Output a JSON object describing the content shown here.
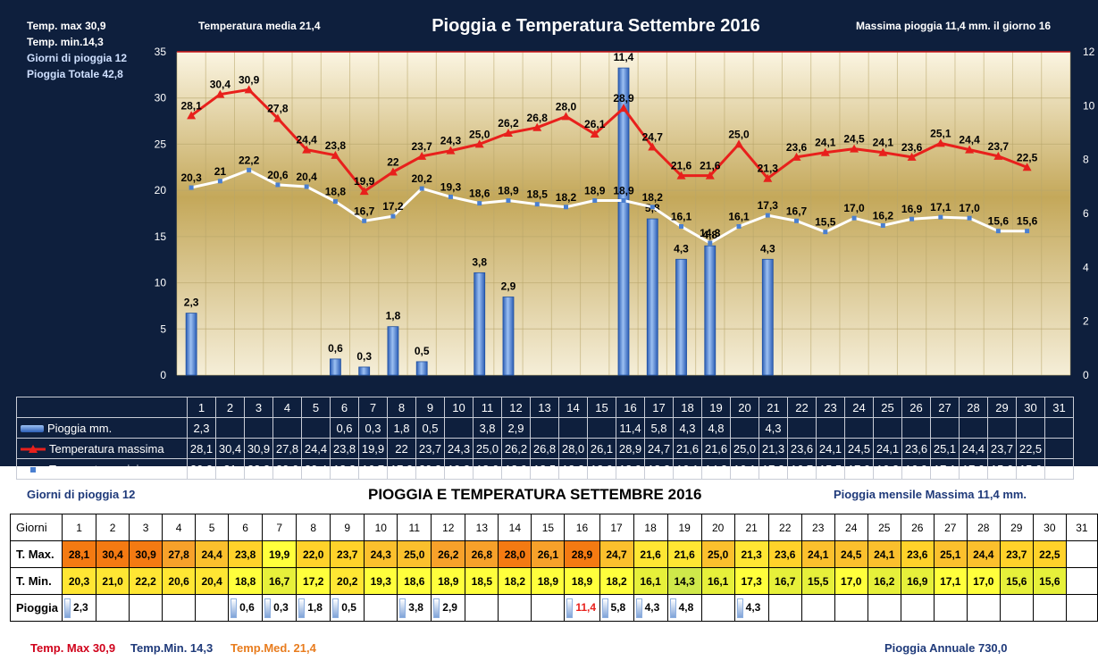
{
  "stats": {
    "tmax": "Temp. max  30,9",
    "tmin": "Temp.  min.14,3",
    "rain_days": "Giorni  di pioggia  12",
    "rain_total": "Pioggia Totale  42,8",
    "mean": "Temperatura media  21,4",
    "rain_max": "Massima pioggia 11,4 mm.  il giorno 16"
  },
  "chart_data": {
    "type": "bar",
    "title": "Pioggia e Temperatura Settembre 2016",
    "categories": [
      "1",
      "2",
      "3",
      "4",
      "5",
      "6",
      "7",
      "8",
      "9",
      "10",
      "11",
      "12",
      "13",
      "14",
      "15",
      "16",
      "17",
      "18",
      "19",
      "20",
      "21",
      "22",
      "23",
      "24",
      "25",
      "26",
      "27",
      "28",
      "29",
      "30",
      "31"
    ],
    "y_left": {
      "min": 0,
      "max": 35,
      "ticks": [
        "0",
        "5",
        "10",
        "15",
        "20",
        "25",
        "30",
        "35"
      ]
    },
    "y_right": {
      "min": 0,
      "max": 12,
      "ticks": [
        "0",
        "2",
        "4",
        "6",
        "8",
        "10",
        "12"
      ]
    },
    "grid": true,
    "series": [
      {
        "name": "Pioggia mm.",
        "kind": "bar",
        "axis": "right",
        "color": "#4a7fd0",
        "values": [
          2.3,
          null,
          null,
          null,
          null,
          0.6,
          0.3,
          1.8,
          0.5,
          null,
          3.8,
          2.9,
          null,
          null,
          null,
          11.4,
          5.8,
          4.3,
          4.8,
          null,
          4.3,
          null,
          null,
          null,
          null,
          null,
          null,
          null,
          null,
          null,
          null
        ],
        "labels": [
          "2,3",
          "",
          "",
          "",
          "",
          "0,6",
          "0,3",
          "1,8",
          "0,5",
          "",
          "3,8",
          "2,9",
          "",
          "",
          "",
          "11,4",
          "5,8",
          "4,3",
          "4,8",
          "",
          "4,3",
          "",
          "",
          "",
          "",
          "",
          "",
          "",
          "",
          "",
          ""
        ]
      },
      {
        "name": "Temperatura massima",
        "kind": "line",
        "axis": "left",
        "color": "#e8201c",
        "values": [
          28.1,
          30.4,
          30.9,
          27.8,
          24.4,
          23.8,
          19.9,
          22.0,
          23.7,
          24.3,
          25.0,
          26.2,
          26.8,
          28.0,
          26.1,
          28.9,
          24.7,
          21.6,
          21.6,
          25.0,
          21.3,
          23.6,
          24.1,
          24.5,
          24.1,
          23.6,
          25.1,
          24.4,
          23.7,
          22.5,
          null
        ],
        "labels": [
          "28,1",
          "30,4",
          "30,9",
          "27,8",
          "24,4",
          "23,8",
          "19,9",
          "22",
          "23,7",
          "24,3",
          "25,0",
          "26,2",
          "26,8",
          "28,0",
          "26,1",
          "28,9",
          "24,7",
          "21,6",
          "21,6",
          "25,0",
          "21,3",
          "23,6",
          "24,1",
          "24,5",
          "24,1",
          "23,6",
          "25,1",
          "24,4",
          "23,7",
          "22,5",
          ""
        ]
      },
      {
        "name": "Temperatura minima",
        "kind": "line",
        "axis": "left",
        "color": "#ffffff",
        "values": [
          20.3,
          21.0,
          22.2,
          20.6,
          20.4,
          18.8,
          16.7,
          17.2,
          20.2,
          19.3,
          18.6,
          18.9,
          18.5,
          18.2,
          18.9,
          18.9,
          18.2,
          16.1,
          14.3,
          16.1,
          17.3,
          16.7,
          15.5,
          17.0,
          16.2,
          16.9,
          17.1,
          17.0,
          15.6,
          15.6,
          null
        ],
        "labels": [
          "20,3",
          "21",
          "22,2",
          "20,6",
          "20,4",
          "18,8",
          "16,7",
          "17,2",
          "20,2",
          "19,3",
          "18,6",
          "18,9",
          "18,5",
          "18,2",
          "18,9",
          "18,9",
          "18,2",
          "16,1",
          "14,3",
          "16,1",
          "17,3",
          "16,7",
          "15,5",
          "17,0",
          "16,2",
          "16,9",
          "17,1",
          "17,0",
          "15,6",
          "15,6",
          ""
        ]
      }
    ]
  },
  "lower": {
    "rain_days": "Giorni di pioggia  12",
    "title": "PIOGGIA E TEMPERATURA SETTEMBRE 2016",
    "rain_max": "Pioggia mensile Massima  11,4   mm.",
    "row_labels": [
      "Giorni",
      "T. Max.",
      "T. Min.",
      "Pioggia"
    ],
    "days": [
      "1",
      "2",
      "3",
      "4",
      "5",
      "6",
      "7",
      "8",
      "9",
      "10",
      "11",
      "12",
      "13",
      "14",
      "15",
      "16",
      "17",
      "18",
      "19",
      "20",
      "21",
      "22",
      "23",
      "24",
      "25",
      "26",
      "27",
      "28",
      "29",
      "30",
      "31"
    ],
    "tmax": [
      "28,1",
      "30,4",
      "30,9",
      "27,8",
      "24,4",
      "23,8",
      "19,9",
      "22,0",
      "23,7",
      "24,3",
      "25,0",
      "26,2",
      "26,8",
      "28,0",
      "26,1",
      "28,9",
      "24,7",
      "21,6",
      "21,6",
      "25,0",
      "21,3",
      "23,6",
      "24,1",
      "24,5",
      "24,1",
      "23,6",
      "25,1",
      "24,4",
      "23,7",
      "22,5",
      ""
    ],
    "tmin": [
      "20,3",
      "21,0",
      "22,2",
      "20,6",
      "20,4",
      "18,8",
      "16,7",
      "17,2",
      "20,2",
      "19,3",
      "18,6",
      "18,9",
      "18,5",
      "18,2",
      "18,9",
      "18,9",
      "18,2",
      "16,1",
      "14,3",
      "16,1",
      "17,3",
      "16,7",
      "15,5",
      "17,0",
      "16,2",
      "16,9",
      "17,1",
      "17,0",
      "15,6",
      "15,6",
      ""
    ],
    "rain": [
      "2,3",
      "",
      "",
      "",
      "",
      "0,6",
      "0,3",
      "1,8",
      "0,5",
      "",
      "3,8",
      "2,9",
      "",
      "",
      "",
      "11,4",
      "5,8",
      "4,3",
      "4,8",
      "",
      "4,3",
      "",
      "",
      "",
      "",
      "",
      "",
      "",
      "",
      "",
      ""
    ],
    "rain_max_day_color": "#e8201c",
    "footer": {
      "tmax": "Temp. Max 30,9",
      "tmin": "Temp.Min.  14,3",
      "tmed": "Temp.Med. 21,4",
      "annual": "Pioggia Annuale  730,0"
    },
    "colors": {
      "tmax_text": "#d0021b",
      "tmin_text": "#1f3a7a",
      "tmed_text": "#e87c1e",
      "annual_text": "#1f3a7a"
    }
  }
}
